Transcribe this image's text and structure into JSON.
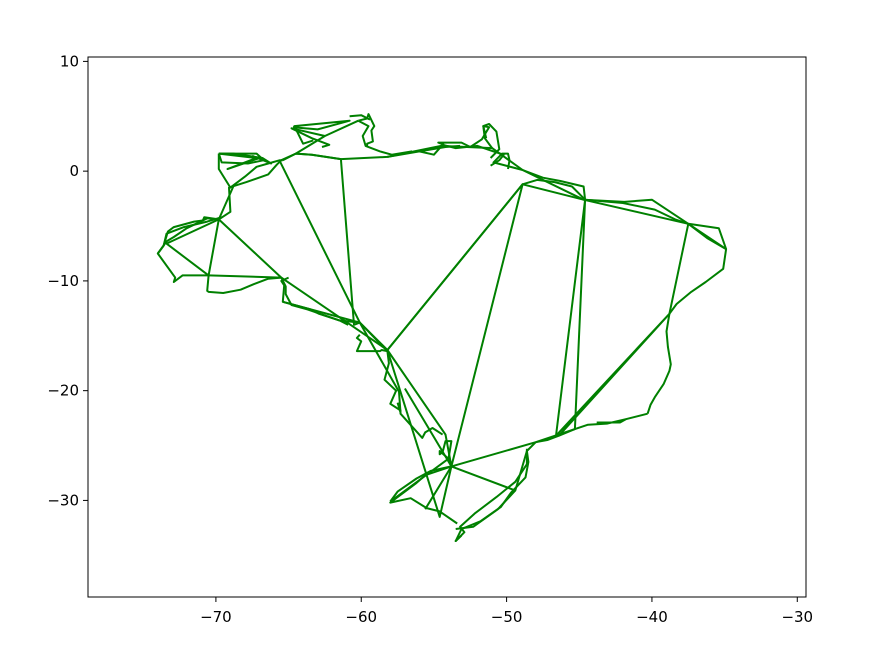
{
  "chart_data": {
    "type": "line",
    "title": "",
    "xlabel": "",
    "ylabel": "",
    "xlim": [
      -78.8,
      -29.4
    ],
    "ylim": [
      -38.8,
      10.4
    ],
    "grid": false,
    "line_color": "#008000",
    "x_ticks": [
      {
        "value": -70,
        "label": "−70"
      },
      {
        "value": -60,
        "label": "−60"
      },
      {
        "value": -50,
        "label": "−50"
      },
      {
        "value": -40,
        "label": "−40"
      },
      {
        "value": -30,
        "label": "−30"
      }
    ],
    "y_ticks": [
      {
        "value": 10,
        "label": "10"
      },
      {
        "value": 0,
        "label": "0"
      },
      {
        "value": -10,
        "label": "−10"
      },
      {
        "value": -20,
        "label": "−20"
      },
      {
        "value": -30,
        "label": "−30"
      }
    ],
    "series": [
      {
        "x": [
          -69.8,
          -69.8,
          -69.0,
          -68.0,
          -67.2,
          -66.4,
          -65.6,
          -65.4
        ],
        "y": [
          1.6,
          0.2,
          -1.5,
          -0.5,
          0.4,
          0.7,
          1.0,
          1.0
        ]
      },
      {
        "x": [
          -69.8,
          -67.2,
          -66.7,
          -67.8,
          -69.6,
          -69.8
        ],
        "y": [
          1.6,
          1.6,
          1.0,
          0.7,
          0.8,
          1.6
        ]
      },
      {
        "x": [
          -69.8,
          -68.8,
          -66.8,
          -66.2,
          -67.5
        ],
        "y": [
          1.6,
          1.6,
          1.2,
          0.7,
          1.4
        ]
      },
      {
        "x": [
          -65.4,
          -64.5,
          -63.4,
          -61.4,
          -58.2,
          -54.5,
          -51.0,
          -48.9,
          -44.7
        ],
        "y": [
          1.0,
          1.6,
          1.5,
          1.1,
          1.3,
          2.3,
          2.1,
          0.1,
          -2.6
        ]
      },
      {
        "x": [
          -64.5,
          -62.5,
          -60.2
        ],
        "y": [
          1.6,
          3.2,
          4.6
        ]
      },
      {
        "x": [
          -64.7,
          -63.0,
          -60.8,
          -64.6,
          -64.0,
          -63.3
        ],
        "y": [
          4.0,
          3.8,
          4.6,
          4.1,
          2.5,
          2.8
        ]
      },
      {
        "x": [
          -62.5,
          -64.8,
          -63.4,
          -62.2,
          -62.7
        ],
        "y": [
          3.2,
          3.9,
          3.0,
          2.4,
          2.2
        ]
      },
      {
        "x": [
          -60.2,
          -59.5,
          -59.9,
          -59.7,
          -58.7,
          -57.9,
          -56.5
        ],
        "y": [
          4.6,
          4.1,
          3.2,
          2.3,
          1.8,
          1.5,
          1.8
        ]
      },
      {
        "x": [
          -60.2,
          -59.6,
          -59.5,
          -59.1,
          -59.3,
          -59.2,
          -59.6,
          -59.6
        ],
        "y": [
          4.6,
          4.8,
          5.2,
          4.1,
          3.7,
          2.7,
          2.5,
          2.2
        ]
      },
      {
        "x": [
          -60.8,
          -60.0,
          -59.4
        ],
        "y": [
          5.0,
          5.1,
          4.7
        ]
      },
      {
        "x": [
          -58.2,
          -56.0,
          -55.0,
          -54.4,
          -53.5,
          -52.0,
          -50.9,
          -50.2,
          -50.5,
          -51.1
        ],
        "y": [
          1.3,
          1.8,
          1.5,
          2.4,
          2.1,
          2.3,
          1.8,
          1.5,
          1.0,
          0.5
        ]
      },
      {
        "x": [
          -56.0,
          -54.2,
          -53.2
        ],
        "y": [
          1.8,
          2.2,
          2.3
        ]
      },
      {
        "x": [
          -54.3,
          -54.7,
          -53.1,
          -52.5,
          -51.7,
          -51.2,
          -51.6,
          -51.4
        ],
        "y": [
          2.4,
          2.6,
          2.6,
          2.2,
          2.9,
          4.0,
          4.1,
          3.0
        ]
      },
      {
        "x": [
          -51.0,
          -51.5,
          -51.6,
          -51.2,
          -50.7,
          -50.5,
          -51.1
        ],
        "y": [
          2.1,
          3.0,
          4.1,
          4.3,
          3.6,
          2.0,
          1.2
        ]
      },
      {
        "x": [
          -49.9,
          -49.8,
          -49.9,
          -50.3,
          -50.9,
          -48.9
        ],
        "y": [
          0.2,
          1.0,
          1.6,
          1.6,
          0.8,
          0.1
        ]
      },
      {
        "x": [
          -48.9,
          -47.5,
          -46.3,
          -44.7,
          -44.6,
          -45.5,
          -46.7,
          -47.9,
          -48.9
        ],
        "y": [
          0.1,
          -0.6,
          -0.9,
          -1.4,
          -2.6,
          -1.4,
          -1.0,
          -0.8,
          -1.2
        ]
      },
      {
        "x": [
          -44.7,
          -41.9,
          -40.0,
          -37.5,
          -35.4,
          -34.9
        ],
        "y": [
          -2.6,
          -2.8,
          -2.6,
          -4.8,
          -5.2,
          -7.1
        ]
      },
      {
        "x": [
          -44.6,
          -42.0,
          -39.8,
          -38.4,
          -37.5
        ],
        "y": [
          -2.6,
          -2.9,
          -3.5,
          -4.4,
          -4.8
        ]
      },
      {
        "x": [
          -37.5,
          -36.2,
          -34.9,
          -35.1,
          -36.3,
          -37.3,
          -38.3,
          -38.8
        ],
        "y": [
          -4.8,
          -6.1,
          -7.1,
          -8.9,
          -10.1,
          -11.0,
          -12.1,
          -13.0
        ]
      },
      {
        "x": [
          -38.8,
          -39.0,
          -38.9,
          -38.7,
          -38.8,
          -39.2,
          -39.8,
          -40.1,
          -40.3
        ],
        "y": [
          -13.0,
          -14.6,
          -16.0,
          -17.6,
          -18.2,
          -19.4,
          -20.6,
          -21.3,
          -22.1
        ]
      },
      {
        "x": [
          -40.3,
          -41.8,
          -43.1,
          -44.4,
          -45.3,
          -46.4,
          -47.2,
          -48.0
        ],
        "y": [
          -22.1,
          -22.6,
          -23.0,
          -23.1,
          -23.5,
          -24.1,
          -24.5,
          -24.7
        ]
      },
      {
        "x": [
          -41.8,
          -42.2,
          -43.8
        ],
        "y": [
          -22.6,
          -22.9,
          -22.9
        ]
      },
      {
        "x": [
          -48.0,
          -48.6,
          -48.5,
          -48.7,
          -49.7,
          -50.4,
          -51.8,
          -53.1,
          -53.5,
          -53.2
        ],
        "y": [
          -24.7,
          -25.5,
          -26.5,
          -27.9,
          -29.3,
          -30.6,
          -31.9,
          -32.6,
          -33.7,
          -33.3
        ]
      },
      {
        "x": [
          -48.6,
          -48.6,
          -49.4,
          -50.7,
          -52.2,
          -53.2,
          -52.9,
          -53.5,
          -53.1
        ],
        "y": [
          -25.3,
          -26.7,
          -28.3,
          -29.7,
          -31.2,
          -32.4,
          -32.9,
          -33.7,
          -33.2
        ]
      },
      {
        "x": [
          -53.5,
          -52.3,
          -50.6,
          -49.4
        ],
        "y": [
          -32.6,
          -32.4,
          -30.8,
          -29.1
        ]
      },
      {
        "x": [
          -53.8,
          -55.2,
          -56.2,
          -57.5,
          -58.0
        ],
        "y": [
          -26.9,
          -27.3,
          -28.0,
          -29.2,
          -30.1
        ]
      },
      {
        "x": [
          -53.8,
          -55.6,
          -56.2,
          -57.6,
          -58.0,
          -56.6,
          -55.5,
          -54.6,
          -53.4
        ],
        "y": [
          -26.9,
          -27.7,
          -28.4,
          -29.8,
          -30.2,
          -29.8,
          -30.7,
          -31.0,
          -32.1
        ]
      },
      {
        "x": [
          -54.0,
          -54.6,
          -54.6,
          -54.4,
          -54.2,
          -53.8,
          -54.0
        ],
        "y": [
          -26.2,
          -25.5,
          -25.8,
          -25.6,
          -24.6,
          -24.6,
          -26.2
        ]
      },
      {
        "x": [
          -54.4,
          -55.1,
          -55.6,
          -55.8,
          -57.3,
          -57.3,
          -58.0,
          -57.6,
          -58.4,
          -58.1,
          -58.2
        ],
        "y": [
          -24.0,
          -23.4,
          -23.8,
          -24.3,
          -22.1,
          -21.8,
          -21.2,
          -20.0,
          -19.0,
          -17.5,
          -16.4
        ]
      },
      {
        "x": [
          -58.2,
          -58.6,
          -58.7,
          -60.3,
          -60.0,
          -60.3,
          -60.1
        ],
        "y": [
          -16.4,
          -16.3,
          -16.4,
          -16.4,
          -15.5,
          -15.2,
          -14.9
        ]
      },
      {
        "x": [
          -60.1,
          -61.5,
          -62.9,
          -63.5,
          -64.6,
          -65.4,
          -65.3,
          -65.5,
          -65.0
        ],
        "y": [
          -13.8,
          -13.6,
          -13.0,
          -12.6,
          -12.2,
          -11.9,
          -10.4,
          -10.0,
          -9.7
        ]
      },
      {
        "x": [
          -65.5,
          -65.2,
          -65.2,
          -64.8,
          -63.7,
          -62.6,
          -61.5,
          -60.9
        ],
        "y": [
          -9.7,
          -10.5,
          -11.2,
          -12.2,
          -12.6,
          -13.1,
          -13.6,
          -14.0
        ]
      },
      {
        "x": [
          -65.5,
          -66.4,
          -67.4,
          -68.3,
          -69.5,
          -70.5,
          -70.6,
          -70.5
        ],
        "y": [
          -9.7,
          -9.8,
          -10.3,
          -10.8,
          -11.1,
          -11.0,
          -10.9,
          -9.5
        ]
      },
      {
        "x": [
          -70.5,
          -72.3,
          -72.9,
          -72.8,
          -74.0,
          -73.6,
          -73.3,
          -72.9,
          -71.5,
          -70.9,
          -70.8,
          -69.8
        ],
        "y": [
          -9.5,
          -9.5,
          -10.1,
          -9.7,
          -7.5,
          -6.8,
          -5.5,
          -5.1,
          -4.6,
          -4.5,
          -4.2,
          -4.4
        ]
      },
      {
        "x": [
          -74.0,
          -73.4,
          -72.9,
          -72.0,
          -70.6,
          -69.9
        ],
        "y": [
          -7.5,
          -6.4,
          -6.0,
          -5.2,
          -4.3,
          -4.4
        ]
      },
      {
        "x": [
          -73.6,
          -73.4,
          -72.2,
          -70.6,
          -69.6
        ],
        "y": [
          -6.8,
          -5.7,
          -5.1,
          -4.6,
          -4.2
        ]
      },
      {
        "x": [
          -69.8,
          -69.0,
          -69.1,
          -67.9,
          -66.4,
          -65.8,
          -65.5
        ],
        "y": [
          -4.4,
          -3.7,
          -1.5,
          -1.0,
          -0.3,
          0.6,
          1.0
        ]
      },
      {
        "x": [
          -65.5,
          -64.5,
          -63.4,
          -61.4,
          -60.5,
          -60.1
        ],
        "y": [
          1.0,
          1.6,
          1.5,
          1.1,
          -14.0,
          -13.8
        ]
      },
      {
        "x": [
          -65.6,
          -60.1,
          -58.2,
          -48.9,
          -44.7,
          -37.5,
          -34.9
        ],
        "y": [
          0.9,
          -13.8,
          -16.3,
          -1.2,
          -2.6,
          -4.8,
          -7.1
        ]
      },
      {
        "x": [
          -69.8,
          -70.5,
          -73.4,
          -69.8
        ],
        "y": [
          -4.4,
          -9.5,
          -6.6,
          -4.4
        ]
      },
      {
        "x": [
          -70.5,
          -65.5,
          -69.8,
          -68.8
        ],
        "y": [
          -9.5,
          -9.7,
          -4.4,
          -1.4
        ]
      },
      {
        "x": [
          -58.2,
          -48.9,
          -53.8,
          -48.9
        ],
        "y": [
          -16.3,
          -1.2,
          -26.9,
          -1.2
        ]
      },
      {
        "x": [
          -53.8,
          -48.0,
          -45.3,
          -44.6,
          -46.6,
          -48.0
        ],
        "y": [
          -26.9,
          -24.7,
          -23.5,
          -2.6,
          -24.1,
          -24.7
        ]
      },
      {
        "x": [
          -46.6,
          -38.8,
          -37.5,
          -38.8,
          -46.4
        ],
        "y": [
          -24.1,
          -13.0,
          -4.8,
          -13.0,
          -24.1
        ]
      },
      {
        "x": [
          -53.8,
          -54.6,
          -58.2,
          -54.2,
          -53.8
        ],
        "y": [
          -26.9,
          -31.5,
          -16.3,
          -24.0,
          -26.9
        ]
      },
      {
        "x": [
          -57.0,
          -53.8,
          -55.6
        ],
        "y": [
          -19.8,
          -26.9,
          -30.8
        ]
      },
      {
        "x": [
          -53.8,
          -49.4,
          -48.6
        ],
        "y": [
          -26.9,
          -29.1,
          -25.5
        ]
      },
      {
        "x": [
          -58.0,
          -54.0,
          -53.8
        ],
        "y": [
          -30.1,
          -26.2,
          -26.9
        ]
      },
      {
        "x": [
          -65.4,
          -60.1,
          -58.2,
          -60.1
        ],
        "y": [
          -11.9,
          -13.8,
          -16.4,
          -13.8
        ]
      },
      {
        "x": [
          -65.5,
          -58.2
        ],
        "y": [
          -9.7,
          -16.3
        ]
      },
      {
        "x": [
          -60.1,
          -57.4,
          -57.3,
          -57.5
        ],
        "y": [
          -13.8,
          -20.1,
          -22.0,
          -21.1
        ]
      },
      {
        "x": [
          -69.8,
          -67.2,
          -69.2,
          -67.0
        ],
        "y": [
          1.6,
          1.2,
          0.2,
          1.2
        ]
      }
    ]
  }
}
